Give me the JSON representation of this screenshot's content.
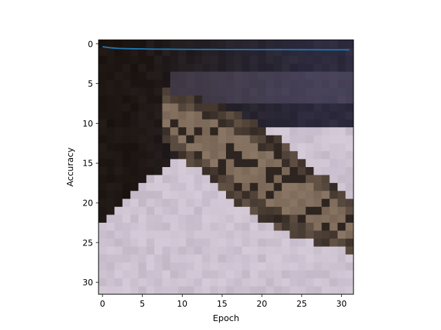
{
  "chart_data": {
    "type": "line",
    "title": "",
    "xlabel": "Epoch",
    "ylabel": "Accuracy",
    "xlim": [
      -0.5,
      31.5
    ],
    "ylim": [
      31.5,
      -0.5
    ],
    "y_inverted": true,
    "grid": false,
    "legend": "none",
    "x_ticks": [
      0,
      5,
      10,
      15,
      20,
      25,
      30
    ],
    "y_ticks": [
      0,
      5,
      10,
      15,
      20,
      25,
      30
    ],
    "x_tick_labels": [
      "0",
      "5",
      "10",
      "15",
      "20",
      "25",
      "30"
    ],
    "y_tick_labels": [
      "0",
      "5",
      "10",
      "15",
      "20",
      "25",
      "30"
    ],
    "background": {
      "kind": "pixelated-image",
      "grid_size": [
        32,
        32
      ],
      "description_colors": {
        "top_left_dark": "#1e1612",
        "top_right_navy": "#2c2a3c",
        "cat_fur_brown": "#7a6656",
        "cat_fur_dark": "#2e2520",
        "blanket_lavender": "#c7bccb",
        "blanket_light": "#d9cfdc"
      }
    },
    "series": [
      {
        "color": "#1f77b4",
        "x": [
          0,
          1,
          2,
          3,
          4,
          5,
          6,
          7,
          8,
          9,
          10,
          11,
          12,
          13,
          14,
          15,
          16,
          17,
          18,
          19,
          20,
          21,
          22,
          23,
          24,
          25,
          26,
          27,
          28,
          29,
          30,
          31
        ],
        "y": [
          0.35,
          0.5,
          0.57,
          0.6,
          0.62,
          0.64,
          0.66,
          0.67,
          0.67,
          0.68,
          0.69,
          0.69,
          0.7,
          0.7,
          0.7,
          0.71,
          0.71,
          0.71,
          0.71,
          0.72,
          0.72,
          0.72,
          0.72,
          0.72,
          0.73,
          0.73,
          0.73,
          0.73,
          0.74,
          0.74,
          0.74,
          0.75
        ]
      }
    ]
  }
}
